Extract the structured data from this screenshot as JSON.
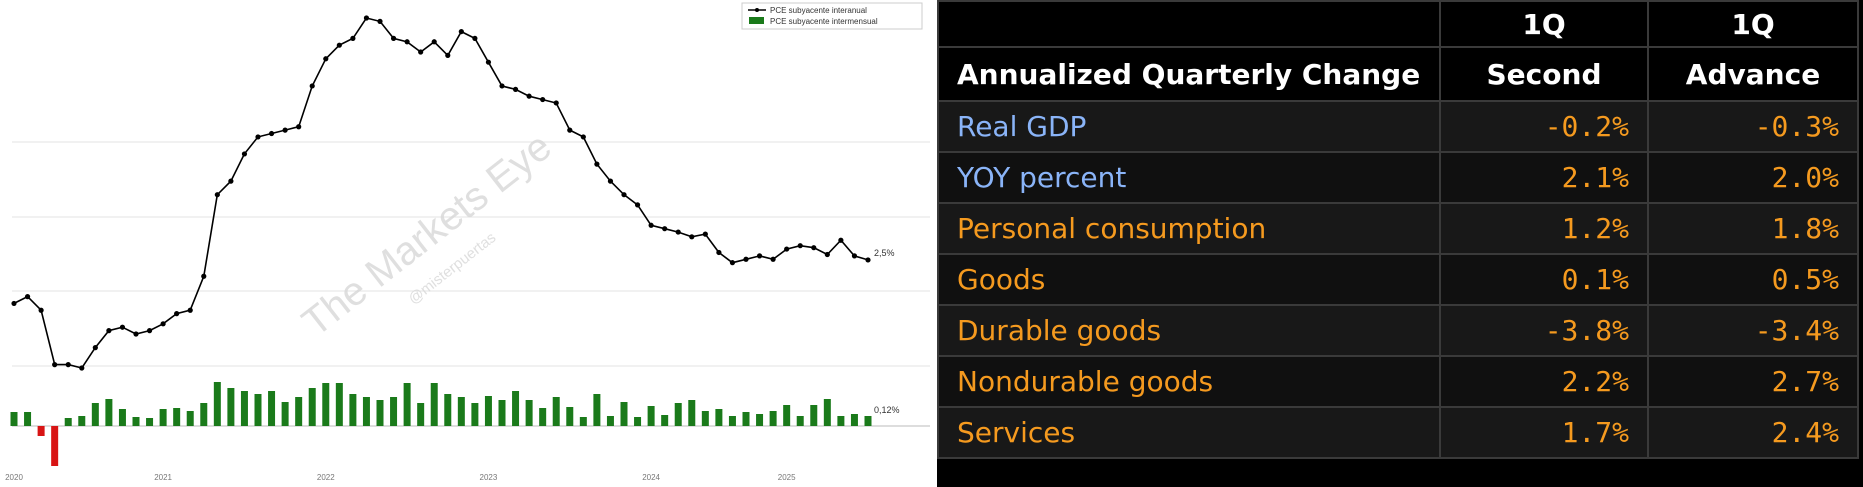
{
  "chart_data": {
    "type": "line+bar",
    "title": "",
    "watermark": "The Markets Eye",
    "watermark_sub": "@misterpuertas",
    "legend": [
      "PCE subyacente interanual",
      "PCE subyacente intermensual"
    ],
    "line_series": {
      "name": "PCE subyacente interanual",
      "values": [
        1.9,
        2.0,
        1.8,
        1.0,
        1.0,
        0.95,
        1.25,
        1.5,
        1.55,
        1.45,
        1.5,
        1.6,
        1.75,
        1.8,
        2.3,
        3.5,
        3.7,
        4.1,
        4.35,
        4.4,
        4.45,
        4.5,
        5.1,
        5.5,
        5.7,
        5.8,
        6.1,
        6.05,
        5.8,
        5.75,
        5.6,
        5.75,
        5.55,
        5.9,
        5.8,
        5.45,
        5.1,
        5.05,
        4.95,
        4.9,
        4.85,
        4.45,
        4.35,
        3.95,
        3.7,
        3.5,
        3.35,
        3.05,
        3.0,
        2.95,
        2.88,
        2.92,
        2.65,
        2.5,
        2.55,
        2.6,
        2.55,
        2.7,
        2.75,
        2.72,
        2.62,
        2.83,
        2.6,
        2.54
      ],
      "end_label": "2,5%",
      "ylim": [
        0,
        6.5
      ]
    },
    "bar_series": {
      "name": "PCE subyacente intermensual",
      "values": [
        0.14,
        0.14,
        -0.1,
        -0.4,
        0.08,
        0.1,
        0.23,
        0.27,
        0.17,
        0.09,
        0.08,
        0.17,
        0.18,
        0.15,
        0.23,
        0.44,
        0.38,
        0.35,
        0.32,
        0.35,
        0.24,
        0.29,
        0.38,
        0.43,
        0.43,
        0.32,
        0.29,
        0.26,
        0.29,
        0.43,
        0.23,
        0.43,
        0.32,
        0.29,
        0.23,
        0.3,
        0.26,
        0.35,
        0.26,
        0.18,
        0.29,
        0.19,
        0.09,
        0.32,
        0.1,
        0.24,
        0.09,
        0.2,
        0.11,
        0.23,
        0.26,
        0.15,
        0.17,
        0.1,
        0.14,
        0.12,
        0.15,
        0.21,
        0.1,
        0.21,
        0.27,
        0.1,
        0.12,
        0.1
      ],
      "end_label": "0,12%",
      "ylim": [
        -0.5,
        0.6
      ]
    },
    "x_tick_labels": [
      "2020",
      "2021",
      "2022",
      "2023",
      "2024",
      "2025"
    ],
    "x_tick_index": [
      0,
      11,
      23,
      35,
      47,
      57
    ]
  },
  "colors": {
    "line": "#000000",
    "bar_positive": "#1a7a1a",
    "bar_negative": "#d81414",
    "table_orange": "#f59a1f",
    "table_blue": "#8ab4f8",
    "table_header": "#ffffff"
  },
  "table": {
    "header_row1": [
      "",
      "1Q",
      "1Q"
    ],
    "header_row2": [
      "Annualized Quarterly Change",
      "Second",
      "Advance"
    ],
    "rows": [
      {
        "label": "Real GDP",
        "second": "-0.2%",
        "advance": "-0.3%",
        "level": 0,
        "color": "#8ab4f8"
      },
      {
        "label": "YOY percent",
        "second": "2.1%",
        "advance": "2.0%",
        "level": 1,
        "color": "#8ab4f8"
      },
      {
        "label": "Personal consumption",
        "second": "1.2%",
        "advance": "1.8%",
        "level": 0,
        "color": "#f59a1f"
      },
      {
        "label": "Goods",
        "second": "0.1%",
        "advance": "0.5%",
        "level": 1,
        "color": "#f59a1f"
      },
      {
        "label": "Durable goods",
        "second": "-3.8%",
        "advance": "-3.4%",
        "level": 2,
        "color": "#f59a1f"
      },
      {
        "label": "Nondurable goods",
        "second": "2.2%",
        "advance": "2.7%",
        "level": 2,
        "color": "#f59a1f"
      },
      {
        "label": "Services",
        "second": "1.7%",
        "advance": "2.4%",
        "level": 1,
        "color": "#f59a1f"
      }
    ]
  }
}
